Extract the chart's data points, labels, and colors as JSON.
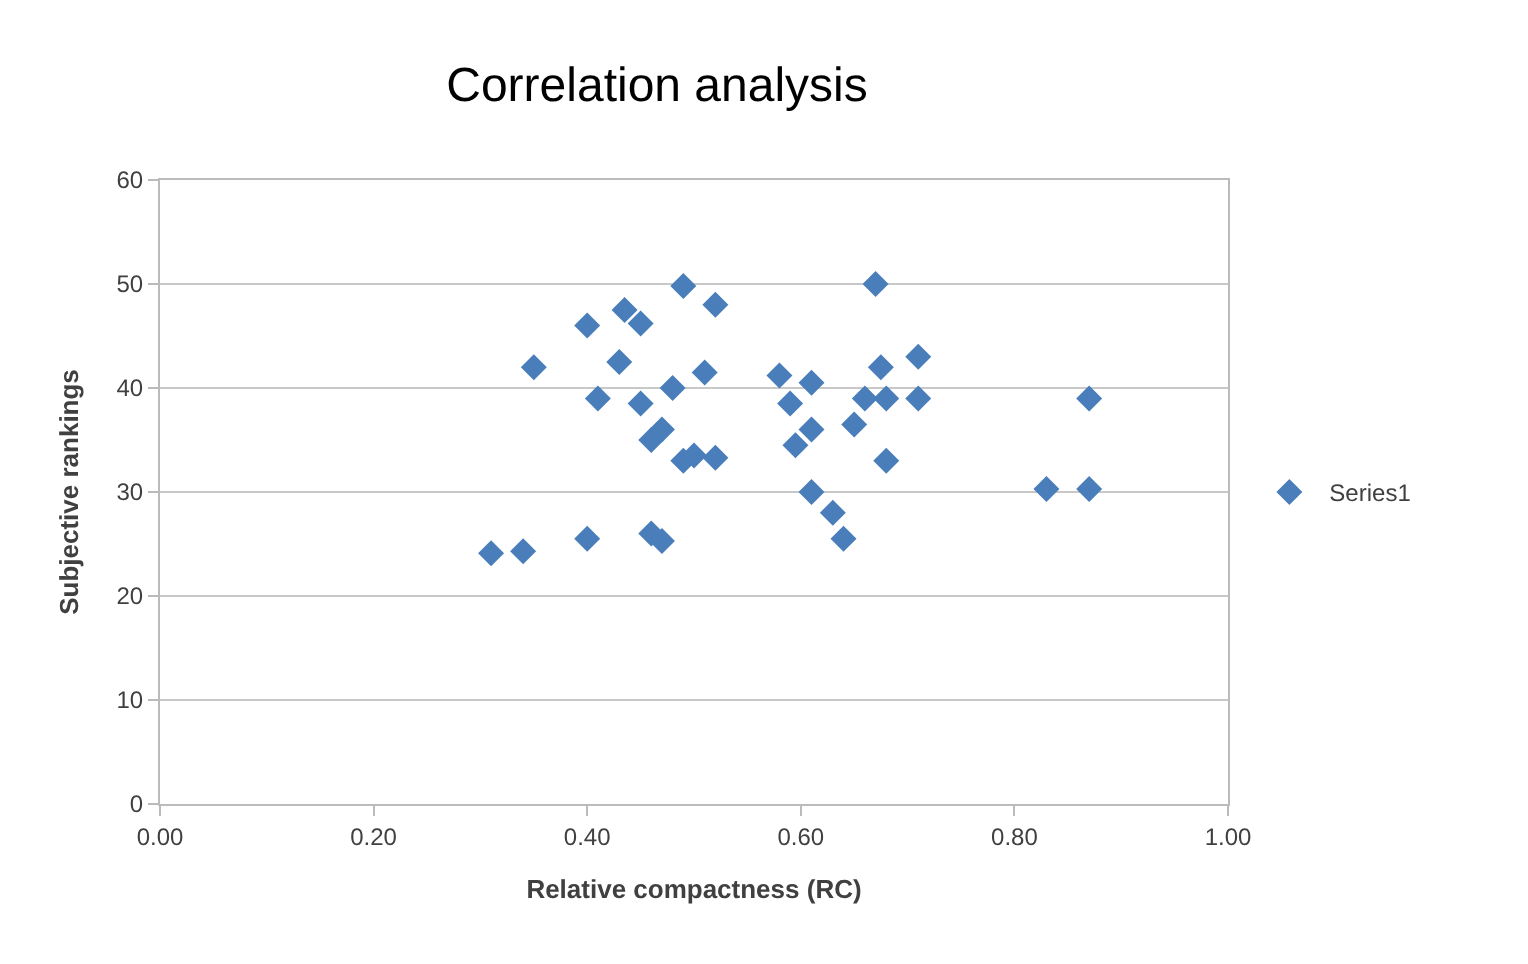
{
  "chart_data": {
    "type": "scatter",
    "title": "Correlation analysis",
    "xlabel": "Relative compactness (RC)",
    "ylabel": "Subjective rankings",
    "xlim": [
      0,
      1
    ],
    "xticks": [
      {
        "value": 0,
        "label": "0.00"
      },
      {
        "value": 0.2,
        "label": "0.20"
      },
      {
        "value": 0.4,
        "label": "0.40"
      },
      {
        "value": 0.6,
        "label": "0.60"
      },
      {
        "value": 0.8,
        "label": "0.80"
      },
      {
        "value": 1,
        "label": "1.00"
      }
    ],
    "ylim": [
      0,
      60
    ],
    "yticks": [
      0,
      10,
      20,
      30,
      40,
      50,
      60
    ],
    "grid": "y",
    "legend": "right",
    "marker": "diamond",
    "series": [
      {
        "name": "Series1",
        "color": "#4a7ebb",
        "x": [
          0.31,
          0.34,
          0.35,
          0.4,
          0.41,
          0.4,
          0.43,
          0.435,
          0.45,
          0.45,
          0.46,
          0.47,
          0.48,
          0.49,
          0.46,
          0.47,
          0.52,
          0.5,
          0.52,
          0.49,
          0.51,
          0.58,
          0.59,
          0.595,
          0.61,
          0.61,
          0.61,
          0.63,
          0.64,
          0.65,
          0.66,
          0.67,
          0.675,
          0.68,
          0.68,
          0.71,
          0.71,
          0.83,
          0.87,
          0.87
        ],
        "values": [
          24.1,
          24.3,
          42,
          46,
          39,
          25.5,
          42.5,
          47.5,
          46.2,
          38.5,
          35,
          36,
          40,
          49.8,
          26,
          25.3,
          48,
          33.5,
          33.3,
          33,
          41.5,
          41.2,
          38.5,
          34.5,
          36,
          40.5,
          30,
          28,
          25.5,
          36.5,
          39,
          50,
          42,
          39,
          33,
          43,
          39,
          30.3,
          30.3,
          39
        ]
      }
    ]
  }
}
